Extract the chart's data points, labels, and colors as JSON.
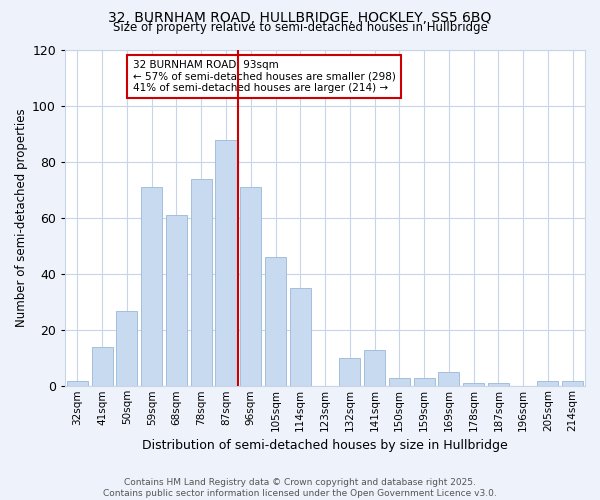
{
  "title1": "32, BURNHAM ROAD, HULLBRIDGE, HOCKLEY, SS5 6BQ",
  "title2": "Size of property relative to semi-detached houses in Hullbridge",
  "xlabel": "Distribution of semi-detached houses by size in Hullbridge",
  "ylabel": "Number of semi-detached properties",
  "bar_labels": [
    "32sqm",
    "41sqm",
    "50sqm",
    "59sqm",
    "68sqm",
    "78sqm",
    "87sqm",
    "96sqm",
    "105sqm",
    "114sqm",
    "123sqm",
    "132sqm",
    "141sqm",
    "150sqm",
    "159sqm",
    "169sqm",
    "178sqm",
    "187sqm",
    "196sqm",
    "205sqm",
    "214sqm"
  ],
  "bar_values": [
    2,
    14,
    27,
    71,
    61,
    74,
    88,
    71,
    46,
    35,
    0,
    10,
    13,
    3,
    3,
    5,
    1,
    1,
    0,
    2,
    2
  ],
  "bar_color": "#c8daf0",
  "bar_edgecolor": "#9ab8d8",
  "vline_color": "#cc0000",
  "vline_pos": 6.5,
  "ylim": [
    0,
    120
  ],
  "yticks": [
    0,
    20,
    40,
    60,
    80,
    100,
    120
  ],
  "annotation_title": "32 BURNHAM ROAD: 93sqm",
  "annotation_line1": "← 57% of semi-detached houses are smaller (298)",
  "annotation_line2": "41% of semi-detached houses are larger (214) →",
  "footer1": "Contains HM Land Registry data © Crown copyright and database right 2025.",
  "footer2": "Contains public sector information licensed under the Open Government Licence v3.0.",
  "bg_color": "#eef2fa",
  "plot_bg_color": "#ffffff",
  "grid_color": "#c8d4e8"
}
